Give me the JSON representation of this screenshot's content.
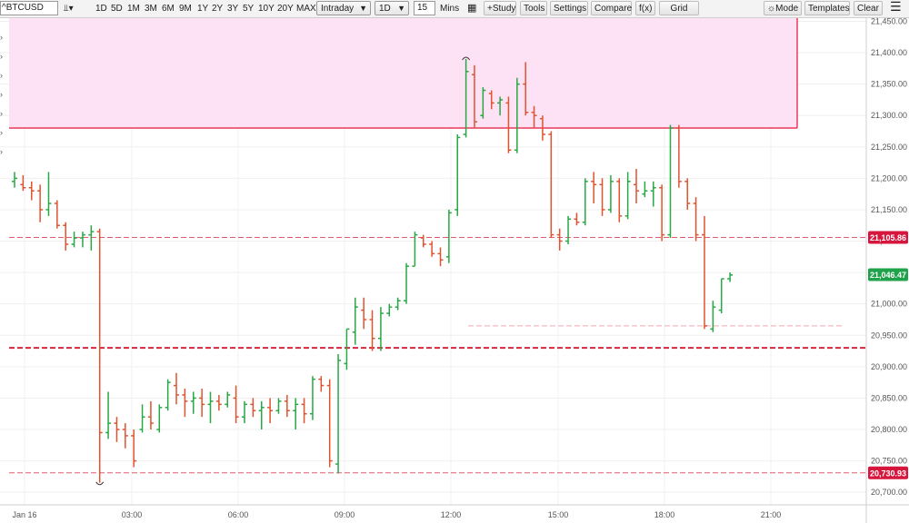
{
  "toolbar": {
    "symbol": "^BTCUSD",
    "ranges": [
      "1D",
      "5D",
      "1M",
      "3M",
      "6M",
      "9M",
      "1Y",
      "2Y",
      "3Y",
      "5Y",
      "10Y",
      "20Y",
      "MAX"
    ],
    "interval_type": "Intraday",
    "period": "1D",
    "aggregation": "15",
    "aggregation_unit": "Mins",
    "study_button": "+Study",
    "tools_button": "Tools",
    "settings_button": "Settings",
    "compare_button": "Compare",
    "fx_button": "f(x)",
    "grid_button": "Grid",
    "mode_button": "Mode",
    "templates_button": "Templates",
    "clear_button": "Clear"
  },
  "chart_data": {
    "type": "ohlc",
    "symbol": "^BTCUSD",
    "y_axis": {
      "ticks": [
        "21,450.00",
        "21,400.00",
        "21,350.00",
        "21,300.00",
        "21,250.00",
        "21,200.00",
        "21,150.00",
        "21,100.00",
        "21,050.00",
        "21,000.00",
        "20,950.00",
        "20,900.00",
        "20,850.00",
        "20,800.00",
        "20,750.00",
        "20,700.00"
      ],
      "range": [
        20680,
        21455
      ]
    },
    "x_axis": {
      "ticks": [
        "Jan 16",
        "03:00",
        "06:00",
        "09:00",
        "12:00",
        "15:00",
        "18:00",
        "21:00"
      ]
    },
    "price_labels": {
      "high_level": "21,105.86",
      "last_price": "21,046.47",
      "low_level": "20,730.93"
    },
    "levels": {
      "high": 21105.86,
      "last": 21046.47,
      "low": 20730.93,
      "support": 20930,
      "faint_line": 20965
    },
    "zone": {
      "from": 21280,
      "to": 21455
    },
    "colors": {
      "up": "#27a844",
      "down": "#e0532f",
      "zone_fill": "#fde2f6",
      "zone_border": "#e83a5a",
      "level_line": "#e35a70",
      "last_label": "#1fa34a",
      "level_label": "#d6163c"
    },
    "candles": [
      {
        "o": 21195,
        "h": 21210,
        "l": 21185,
        "c": 21200
      },
      {
        "o": 21190,
        "h": 21205,
        "l": 21180,
        "c": 21185
      },
      {
        "o": 21185,
        "h": 21195,
        "l": 21165,
        "c": 21180
      },
      {
        "o": 21180,
        "h": 21190,
        "l": 21130,
        "c": 21150
      },
      {
        "o": 21150,
        "h": 21210,
        "l": 21140,
        "c": 21160
      },
      {
        "o": 21160,
        "h": 21165,
        "l": 21120,
        "c": 21125
      },
      {
        "o": 21125,
        "h": 21130,
        "l": 21085,
        "c": 21095
      },
      {
        "o": 21095,
        "h": 21115,
        "l": 21090,
        "c": 21105
      },
      {
        "o": 21105,
        "h": 21115,
        "l": 21090,
        "c": 21110
      },
      {
        "o": 21110,
        "h": 21125,
        "l": 21085,
        "c": 21115
      },
      {
        "o": 21115,
        "h": 21120,
        "l": 20715,
        "c": 20795
      },
      {
        "o": 20795,
        "h": 20860,
        "l": 20785,
        "c": 20810
      },
      {
        "o": 20810,
        "h": 20820,
        "l": 20780,
        "c": 20800
      },
      {
        "o": 20800,
        "h": 20810,
        "l": 20770,
        "c": 20790
      },
      {
        "o": 20790,
        "h": 20800,
        "l": 20740,
        "c": 20750
      },
      {
        "o": 20800,
        "h": 20840,
        "l": 20795,
        "c": 20820
      },
      {
        "o": 20820,
        "h": 20845,
        "l": 20800,
        "c": 20810
      },
      {
        "o": 20800,
        "h": 20840,
        "l": 20795,
        "c": 20835
      },
      {
        "o": 20835,
        "h": 20880,
        "l": 20830,
        "c": 20875
      },
      {
        "o": 20870,
        "h": 20890,
        "l": 20840,
        "c": 20855
      },
      {
        "o": 20855,
        "h": 20865,
        "l": 20820,
        "c": 20845
      },
      {
        "o": 20845,
        "h": 20860,
        "l": 20825,
        "c": 20850
      },
      {
        "o": 20850,
        "h": 20865,
        "l": 20820,
        "c": 20840
      },
      {
        "o": 20840,
        "h": 20860,
        "l": 20810,
        "c": 20845
      },
      {
        "o": 20845,
        "h": 20855,
        "l": 20830,
        "c": 20840
      },
      {
        "o": 20840,
        "h": 20860,
        "l": 20835,
        "c": 20855
      },
      {
        "o": 20850,
        "h": 20870,
        "l": 20810,
        "c": 20820
      },
      {
        "o": 20820,
        "h": 20845,
        "l": 20810,
        "c": 20840
      },
      {
        "o": 20840,
        "h": 20850,
        "l": 20820,
        "c": 20830
      },
      {
        "o": 20830,
        "h": 20845,
        "l": 20800,
        "c": 20835
      },
      {
        "o": 20835,
        "h": 20850,
        "l": 20810,
        "c": 20830
      },
      {
        "o": 20830,
        "h": 20850,
        "l": 20825,
        "c": 20845
      },
      {
        "o": 20845,
        "h": 20855,
        "l": 20820,
        "c": 20830
      },
      {
        "o": 20830,
        "h": 20850,
        "l": 20800,
        "c": 20840
      },
      {
        "o": 20840,
        "h": 20850,
        "l": 20810,
        "c": 20825
      },
      {
        "o": 20825,
        "h": 20885,
        "l": 20815,
        "c": 20880
      },
      {
        "o": 20880,
        "h": 20885,
        "l": 20860,
        "c": 20870
      },
      {
        "o": 20870,
        "h": 20880,
        "l": 20740,
        "c": 20750
      },
      {
        "o": 20745,
        "h": 20920,
        "l": 20730,
        "c": 20910
      },
      {
        "o": 20905,
        "h": 20960,
        "l": 20895,
        "c": 20960
      },
      {
        "o": 20955,
        "h": 21010,
        "l": 20935,
        "c": 20995
      },
      {
        "o": 20990,
        "h": 21010,
        "l": 20960,
        "c": 20975
      },
      {
        "o": 20975,
        "h": 20990,
        "l": 20925,
        "c": 20945
      },
      {
        "o": 20945,
        "h": 20995,
        "l": 20925,
        "c": 20985
      },
      {
        "o": 20985,
        "h": 21000,
        "l": 20980,
        "c": 20995
      },
      {
        "o": 20995,
        "h": 21010,
        "l": 20990,
        "c": 21005
      },
      {
        "o": 21005,
        "h": 21065,
        "l": 21000,
        "c": 21060
      },
      {
        "o": 21060,
        "h": 21115,
        "l": 21060,
        "c": 21110
      },
      {
        "o": 21105,
        "h": 21110,
        "l": 21090,
        "c": 21095
      },
      {
        "o": 21095,
        "h": 21100,
        "l": 21075,
        "c": 21080
      },
      {
        "o": 21080,
        "h": 21090,
        "l": 21060,
        "c": 21070
      },
      {
        "o": 21075,
        "h": 21150,
        "l": 21065,
        "c": 21145
      },
      {
        "o": 21150,
        "h": 21270,
        "l": 21140,
        "c": 21265
      },
      {
        "o": 21270,
        "h": 21390,
        "l": 21265,
        "c": 21370
      },
      {
        "o": 21365,
        "h": 21380,
        "l": 21280,
        "c": 21290
      },
      {
        "o": 21300,
        "h": 21345,
        "l": 21295,
        "c": 21340
      },
      {
        "o": 21335,
        "h": 21340,
        "l": 21310,
        "c": 21320
      },
      {
        "o": 21320,
        "h": 21330,
        "l": 21300,
        "c": 21325
      },
      {
        "o": 21320,
        "h": 21330,
        "l": 21240,
        "c": 21245
      },
      {
        "o": 21245,
        "h": 21360,
        "l": 21240,
        "c": 21350
      },
      {
        "o": 21350,
        "h": 21385,
        "l": 21300,
        "c": 21305
      },
      {
        "o": 21305,
        "h": 21315,
        "l": 21280,
        "c": 21300
      },
      {
        "o": 21295,
        "h": 21300,
        "l": 21260,
        "c": 21270
      },
      {
        "o": 21270,
        "h": 21275,
        "l": 21105,
        "c": 21110
      },
      {
        "o": 21110,
        "h": 21120,
        "l": 21085,
        "c": 21100
      },
      {
        "o": 21100,
        "h": 21140,
        "l": 21095,
        "c": 21135
      },
      {
        "o": 21135,
        "h": 21145,
        "l": 21125,
        "c": 21130
      },
      {
        "o": 21130,
        "h": 21200,
        "l": 21125,
        "c": 21195
      },
      {
        "o": 21195,
        "h": 21210,
        "l": 21160,
        "c": 21190
      },
      {
        "o": 21190,
        "h": 21200,
        "l": 21140,
        "c": 21150
      },
      {
        "o": 21150,
        "h": 21205,
        "l": 21145,
        "c": 21195
      },
      {
        "o": 21195,
        "h": 21200,
        "l": 21130,
        "c": 21140
      },
      {
        "o": 21140,
        "h": 21210,
        "l": 21135,
        "c": 21195
      },
      {
        "o": 21190,
        "h": 21215,
        "l": 21160,
        "c": 21180
      },
      {
        "o": 21175,
        "h": 21195,
        "l": 21170,
        "c": 21180
      },
      {
        "o": 21180,
        "h": 21195,
        "l": 21155,
        "c": 21185
      },
      {
        "o": 21185,
        "h": 21190,
        "l": 21100,
        "c": 21110
      },
      {
        "o": 21110,
        "h": 21285,
        "l": 21105,
        "c": 21280
      },
      {
        "o": 21280,
        "h": 21285,
        "l": 21185,
        "c": 21195
      },
      {
        "o": 21195,
        "h": 21200,
        "l": 21150,
        "c": 21160
      },
      {
        "o": 21160,
        "h": 21170,
        "l": 21100,
        "c": 21110
      },
      {
        "o": 21110,
        "h": 21140,
        "l": 20960,
        "c": 20965
      },
      {
        "o": 20960,
        "h": 21005,
        "l": 20955,
        "c": 20995
      },
      {
        "o": 20990,
        "h": 21040,
        "l": 20985,
        "c": 21040
      },
      {
        "o": 21040,
        "h": 21050,
        "l": 21035,
        "c": 21046
      }
    ]
  }
}
